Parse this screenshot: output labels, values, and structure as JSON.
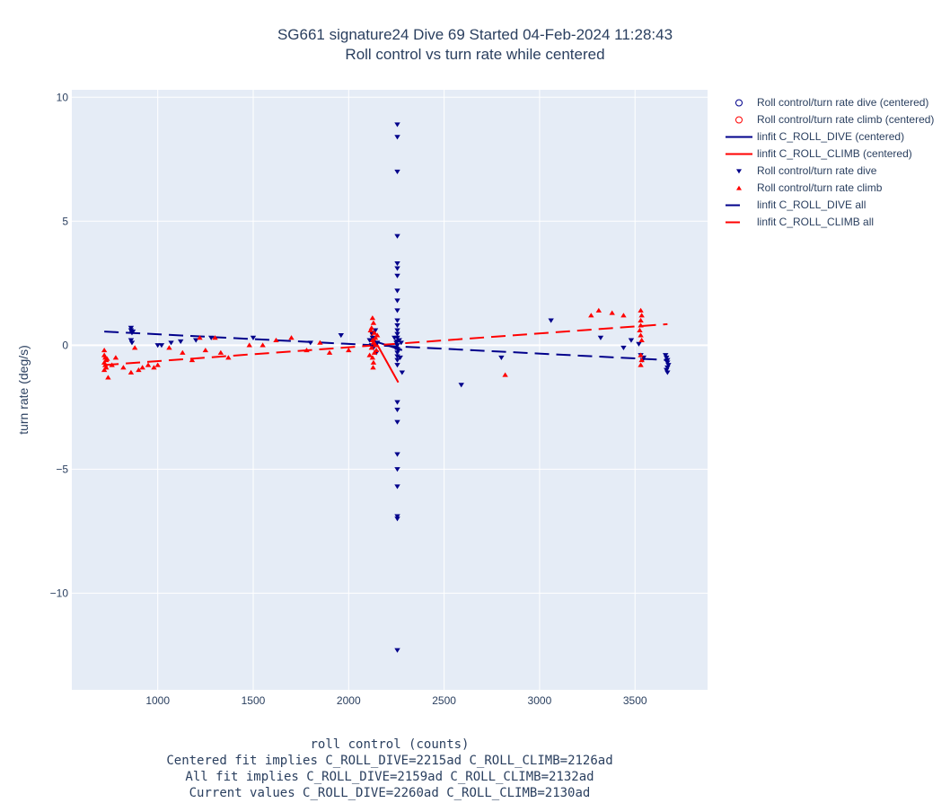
{
  "title_line1": "SG661 signature24 Dive 69 Started 04-Feb-2024 11:28:43",
  "title_line2": "Roll control vs turn rate while centered",
  "x_notes": {
    "line1": "roll control (counts)",
    "line2": "Centered fit implies C_ROLL_DIVE=2215ad C_ROLL_CLIMB=2126ad",
    "line3": "All fit implies C_ROLL_DIVE=2159ad C_ROLL_CLIMB=2132ad",
    "line4": "Current values C_ROLL_DIVE=2260ad C_ROLL_CLIMB=2130ad"
  },
  "legend": [
    {
      "label": "Roll control/turn rate dive (centered)",
      "symbol": "circle-open",
      "color": "#00008b"
    },
    {
      "label": "Roll control/turn rate climb (centered)",
      "symbol": "circle-open",
      "color": "#ff0000"
    },
    {
      "label": "linfit C_ROLL_DIVE (centered)",
      "symbol": "line-solid",
      "color": "#00008b"
    },
    {
      "label": "linfit C_ROLL_CLIMB (centered)",
      "symbol": "line-solid",
      "color": "#ff0000"
    },
    {
      "label": "Roll control/turn rate dive",
      "symbol": "triangle-down",
      "color": "#00008b"
    },
    {
      "label": "Roll control/turn rate climb",
      "symbol": "triangle-up",
      "color": "#ff0000"
    },
    {
      "label": "linfit C_ROLL_DIVE all",
      "symbol": "line-dash",
      "color": "#00008b"
    },
    {
      "label": "linfit C_ROLL_CLIMB all",
      "symbol": "line-dash",
      "color": "#ff0000"
    }
  ],
  "chart_data": {
    "type": "scatter",
    "ylabel": "turn rate (deg/s)",
    "xlim": [
      550,
      3880
    ],
    "ylim": [
      -13.9,
      10.3
    ],
    "x_ticks": [
      1000,
      1500,
      2000,
      2500,
      3000,
      3500
    ],
    "x_tick_labels": [
      "1000",
      "1500",
      "2000",
      "2500",
      "3000",
      "3500"
    ],
    "y_ticks": [
      10,
      5,
      0,
      -5,
      -10
    ],
    "y_tick_labels": [
      "10",
      "5",
      "0",
      "−5",
      "−10"
    ],
    "grid": true,
    "legend_position": "right",
    "series": [
      {
        "name": "Roll control/turn rate dive",
        "color": "#00008b",
        "marker": "triangle-down",
        "points": [
          [
            2255,
            8.9
          ],
          [
            2255,
            8.4
          ],
          [
            2255,
            7.0
          ],
          [
            2255,
            4.4
          ],
          [
            2255,
            3.3
          ],
          [
            2255,
            3.1
          ],
          [
            2255,
            2.8
          ],
          [
            2255,
            2.2
          ],
          [
            2255,
            1.8
          ],
          [
            2255,
            1.4
          ],
          [
            2255,
            1.0
          ],
          [
            2255,
            0.8
          ],
          [
            2255,
            0.6
          ],
          [
            2255,
            0.45
          ],
          [
            2255,
            0.3
          ],
          [
            2255,
            0.15
          ],
          [
            2255,
            0.0
          ],
          [
            2255,
            -0.15
          ],
          [
            2255,
            -0.3
          ],
          [
            2255,
            -0.45
          ],
          [
            2255,
            -0.6
          ],
          [
            2255,
            -0.8
          ],
          [
            2255,
            -2.3
          ],
          [
            2255,
            -2.6
          ],
          [
            2255,
            -3.1
          ],
          [
            2255,
            -4.4
          ],
          [
            2255,
            -5.0
          ],
          [
            2255,
            -5.7
          ],
          [
            2255,
            -6.9
          ],
          [
            2255,
            -7.0
          ],
          [
            2255,
            -12.3
          ],
          [
            2240,
            0.3
          ],
          [
            2245,
            -0.1
          ],
          [
            2250,
            0.1
          ],
          [
            2260,
            -0.2
          ],
          [
            2265,
            0.2
          ],
          [
            2270,
            -0.5
          ],
          [
            2275,
            0.1
          ],
          [
            2280,
            -1.1
          ],
          [
            2140,
            0.6
          ],
          [
            2125,
            0.3
          ],
          [
            2120,
            0.0
          ],
          [
            2145,
            -0.3
          ],
          [
            2150,
            0.1
          ],
          [
            2110,
            0.2
          ],
          [
            2130,
            -0.1
          ],
          [
            2120,
            0.5
          ],
          [
            860,
            0.7
          ],
          [
            860,
            0.6
          ],
          [
            865,
            0.5
          ],
          [
            870,
            0.55
          ],
          [
            860,
            0.2
          ],
          [
            865,
            0.1
          ],
          [
            1000,
            0.0
          ],
          [
            1020,
            0.0
          ],
          [
            1070,
            0.1
          ],
          [
            1120,
            0.15
          ],
          [
            1200,
            0.2
          ],
          [
            1280,
            0.3
          ],
          [
            1500,
            0.3
          ],
          [
            1800,
            0.1
          ],
          [
            1960,
            0.4
          ],
          [
            2590,
            -1.6
          ],
          [
            2800,
            -0.5
          ],
          [
            3060,
            1.0
          ],
          [
            3320,
            0.3
          ],
          [
            3440,
            -0.1
          ],
          [
            3480,
            0.2
          ],
          [
            3520,
            0.05
          ],
          [
            3530,
            -0.4
          ],
          [
            3540,
            -0.6
          ],
          [
            3545,
            -0.5
          ],
          [
            3660,
            -0.4
          ],
          [
            3665,
            -0.5
          ],
          [
            3670,
            -0.6
          ],
          [
            3670,
            -0.7
          ],
          [
            3675,
            -0.8
          ],
          [
            3670,
            -0.9
          ],
          [
            3665,
            -1.0
          ],
          [
            3670,
            -1.1
          ]
        ]
      },
      {
        "name": "Roll control/turn rate climb",
        "color": "#ff0000",
        "marker": "triangle-up",
        "points": [
          [
            2125,
            1.1
          ],
          [
            2130,
            0.9
          ],
          [
            2120,
            0.7
          ],
          [
            2135,
            0.5
          ],
          [
            2140,
            0.3
          ],
          [
            2125,
            0.2
          ],
          [
            2130,
            0.1
          ],
          [
            2120,
            -0.1
          ],
          [
            2135,
            -0.3
          ],
          [
            2125,
            -0.5
          ],
          [
            2130,
            -0.7
          ],
          [
            2128,
            -0.9
          ],
          [
            2140,
            0.0
          ],
          [
            2145,
            -0.2
          ],
          [
            2150,
            0.4
          ],
          [
            2115,
            0.6
          ],
          [
            2110,
            -0.4
          ],
          [
            720,
            -0.2
          ],
          [
            720,
            -0.4
          ],
          [
            725,
            -0.5
          ],
          [
            730,
            -0.6
          ],
          [
            720,
            -0.7
          ],
          [
            725,
            -0.8
          ],
          [
            730,
            -0.9
          ],
          [
            720,
            -1.0
          ],
          [
            735,
            -0.55
          ],
          [
            740,
            -1.3
          ],
          [
            760,
            -0.8
          ],
          [
            780,
            -0.5
          ],
          [
            820,
            -0.9
          ],
          [
            860,
            -1.1
          ],
          [
            880,
            -0.1
          ],
          [
            900,
            -1.0
          ],
          [
            920,
            -0.9
          ],
          [
            950,
            -0.8
          ],
          [
            980,
            -0.9
          ],
          [
            1000,
            -0.8
          ],
          [
            1060,
            -0.1
          ],
          [
            1130,
            -0.3
          ],
          [
            1180,
            -0.6
          ],
          [
            1220,
            0.3
          ],
          [
            1250,
            -0.2
          ],
          [
            1300,
            0.3
          ],
          [
            1330,
            -0.3
          ],
          [
            1370,
            -0.5
          ],
          [
            1480,
            0.0
          ],
          [
            1550,
            0.0
          ],
          [
            1620,
            0.2
          ],
          [
            1700,
            0.3
          ],
          [
            1780,
            -0.2
          ],
          [
            1850,
            0.1
          ],
          [
            1900,
            -0.3
          ],
          [
            2000,
            -0.2
          ],
          [
            2820,
            -1.2
          ],
          [
            3270,
            1.2
          ],
          [
            3310,
            1.4
          ],
          [
            3380,
            1.3
          ],
          [
            3440,
            1.2
          ],
          [
            3530,
            1.4
          ],
          [
            3535,
            1.2
          ],
          [
            3530,
            1.0
          ],
          [
            3530,
            0.8
          ],
          [
            3525,
            0.6
          ],
          [
            3530,
            0.4
          ],
          [
            3535,
            0.2
          ],
          [
            3530,
            -0.4
          ],
          [
            3535,
            -0.6
          ],
          [
            3530,
            -0.8
          ]
        ]
      },
      {
        "name": "linfit C_ROLL_DIVE (centered)",
        "color": "#00008b",
        "style": "solid",
        "points": [
          [
            2120,
            0.2
          ],
          [
            2280,
            -0.2
          ]
        ]
      },
      {
        "name": "linfit C_ROLL_CLIMB (centered)",
        "color": "#ff0000",
        "style": "solid",
        "points": [
          [
            2115,
            0.5
          ],
          [
            2260,
            -1.5
          ]
        ]
      },
      {
        "name": "linfit C_ROLL_DIVE all",
        "color": "#00008b",
        "style": "dash",
        "points": [
          [
            720,
            0.55
          ],
          [
            3670,
            -0.6
          ]
        ]
      },
      {
        "name": "linfit C_ROLL_CLIMB all",
        "color": "#ff0000",
        "style": "dash",
        "points": [
          [
            720,
            -0.8
          ],
          [
            3670,
            0.85
          ]
        ]
      }
    ]
  }
}
